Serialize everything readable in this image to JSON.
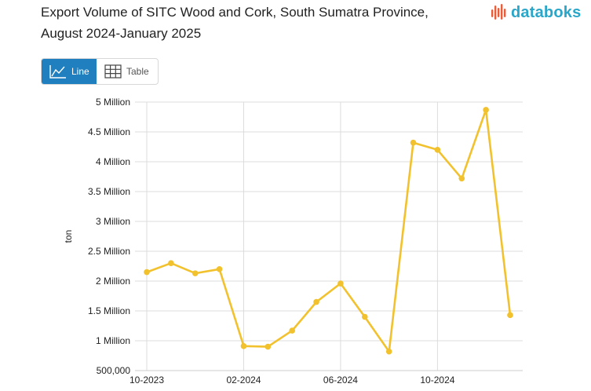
{
  "title": "Export Volume of SITC Wood and Cork, South Sumatra Province, August 2024-January 2025",
  "brand": {
    "name": "databoks",
    "icon": "databoks-logo-icon",
    "color": "#29a6c9",
    "accent": "#e85d3a"
  },
  "view_toggle": {
    "line_label": "Line",
    "table_label": "Table",
    "active": "Line",
    "active_color": "#1f7fbf"
  },
  "chart_data": {
    "type": "line",
    "title": "Export Volume of SITC Wood and Cork, South Sumatra Province, August 2024-January 2025",
    "xlabel": "",
    "ylabel": "ton",
    "x": [
      "2023-10",
      "2023-11",
      "2023-12",
      "2024-01",
      "2024-02",
      "2024-03",
      "2024-04",
      "2024-05",
      "2024-06",
      "2024-07",
      "2024-08",
      "2024-09",
      "2024-10",
      "2024-11",
      "2024-12",
      "2025-01"
    ],
    "x_tick_labels": [
      "10-2023",
      "02-2024",
      "06-2024",
      "10-2024"
    ],
    "x_tick_positions": [
      "2023-10",
      "2024-02",
      "2024-06",
      "2024-10"
    ],
    "series": [
      {
        "color": "#f2c12e",
        "values": [
          2150000,
          2300000,
          2130000,
          2200000,
          910000,
          900000,
          1170000,
          1650000,
          1960000,
          1400000,
          820000,
          4320000,
          4200000,
          3720000,
          4870000,
          1430000
        ]
      }
    ],
    "ylim": [
      500000,
      5000000
    ],
    "y_ticks": [
      500000,
      1000000,
      1500000,
      2000000,
      2500000,
      3000000,
      3500000,
      4000000,
      4500000,
      5000000
    ],
    "y_tick_labels": [
      "500,000",
      "1 Million",
      "1.5 Million",
      "2 Million",
      "2.5 Million",
      "3 Million",
      "3.5 Million",
      "4 Million",
      "4.5 Million",
      "5 Million"
    ],
    "grid": true,
    "legend": "none"
  }
}
